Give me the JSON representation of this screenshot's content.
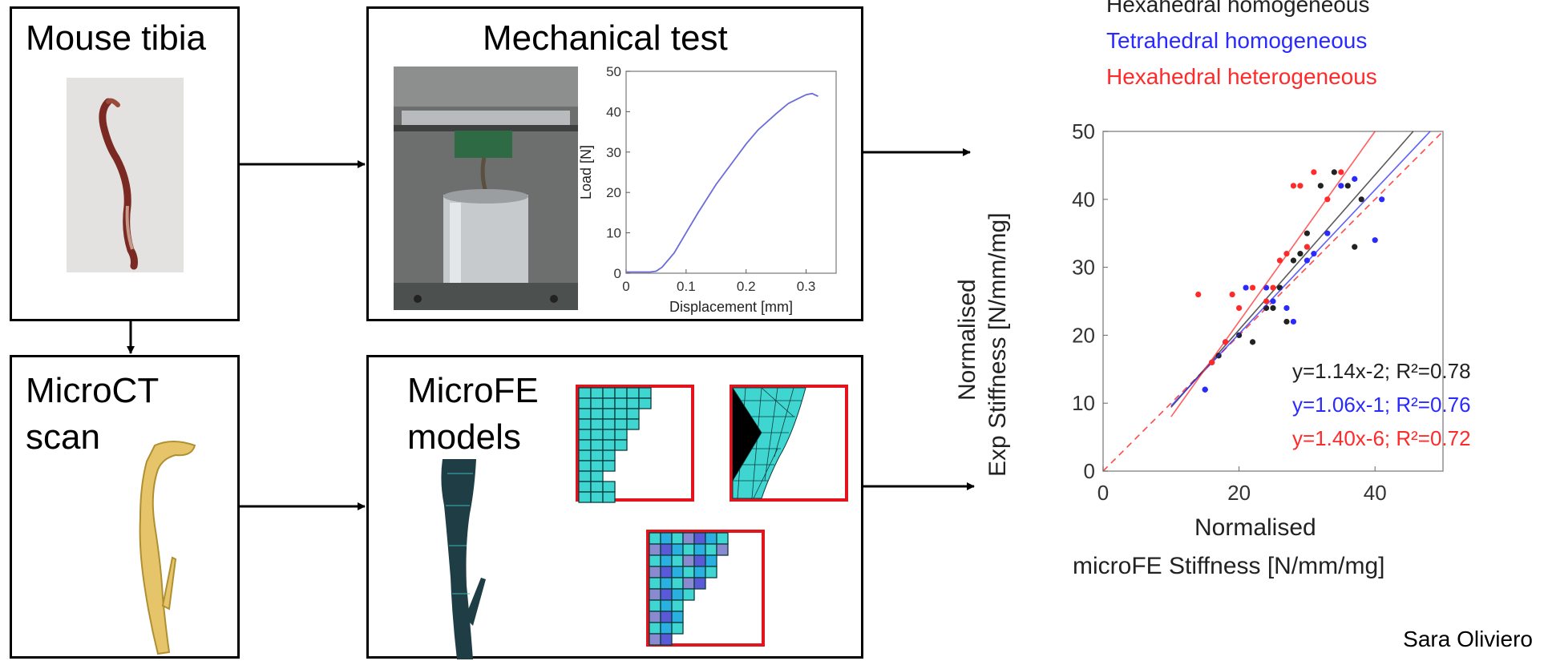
{
  "boxes": {
    "tibia": {
      "title": "Mouse tibia"
    },
    "mechanical": {
      "title": "Mechanical test"
    },
    "microct": {
      "title_line1": "MicroCT",
      "title_line2": "scan"
    },
    "microfe": {
      "title_line1": "MicroFE",
      "title_line2": "models"
    }
  },
  "inner_chart_data": {
    "type": "line",
    "xlabel": "Displacement [mm]",
    "ylabel": "Load [N]",
    "xlim": [
      0,
      0.35
    ],
    "ylim": [
      0,
      50
    ],
    "xticks": [
      "0",
      "0.1",
      "0.2",
      "0.3"
    ],
    "yticks": [
      "0",
      "10",
      "20",
      "30",
      "40",
      "50"
    ],
    "x": [
      0,
      0.04,
      0.05,
      0.06,
      0.08,
      0.1,
      0.12,
      0.15,
      0.18,
      0.2,
      0.22,
      0.25,
      0.27,
      0.29,
      0.3,
      0.31,
      0.32
    ],
    "y": [
      0.3,
      0.3,
      0.5,
      1.5,
      5,
      10,
      15,
      22,
      28,
      32,
      35.5,
      39.5,
      42,
      43.5,
      44.2,
      44.5,
      43.8
    ],
    "color": "#6b6bdc"
  },
  "chart_data": {
    "type": "scatter",
    "title": "",
    "legend": [
      "Hexahedral homogeneous",
      "Tetrahedral homogeneous",
      "Hexahedral heterogeneous"
    ],
    "colors": [
      "#222222",
      "#2a2aff",
      "#ff2a2a"
    ],
    "xlabel_line1": "Normalised",
    "xlabel_line2": "microFE Stiffness [N/mm/mg]",
    "ylabel_line1": "Normalised",
    "ylabel_line2": "Exp Stiffness [N/mm/mg]",
    "xlim": [
      0,
      50
    ],
    "ylim": [
      0,
      50
    ],
    "xticks": [
      "0",
      "20",
      "40"
    ],
    "yticks": [
      "0",
      "10",
      "20",
      "30",
      "40",
      "50"
    ],
    "series": [
      {
        "name": "Hexahedral homogeneous",
        "fit": [
          1.14,
          -2
        ],
        "x": [
          15,
          17,
          20,
          22,
          24,
          25,
          26,
          27,
          28,
          29,
          30,
          32,
          34,
          36,
          37,
          38
        ],
        "y": [
          12,
          17,
          20,
          19,
          24,
          24,
          27,
          22,
          31,
          32,
          35,
          42,
          44,
          42,
          33,
          40
        ]
      },
      {
        "name": "Tetrahedral homogeneous",
        "fit": [
          1.06,
          -1
        ],
        "x": [
          15,
          16,
          18,
          21,
          24,
          25,
          27,
          28,
          30,
          31,
          33,
          35,
          37,
          40,
          41
        ],
        "y": [
          12,
          16,
          19,
          27,
          27,
          25,
          24,
          22,
          31,
          32,
          35,
          42,
          43,
          34,
          40
        ]
      },
      {
        "name": "Hexahedral heterogeneous",
        "fit": [
          1.4,
          -6
        ],
        "x": [
          14,
          16,
          18,
          19,
          20,
          22,
          24,
          25,
          26,
          27,
          28,
          29,
          30,
          31,
          33,
          35
        ],
        "y": [
          26,
          16,
          19,
          26,
          24,
          27,
          25,
          27,
          31,
          32,
          42,
          42,
          33,
          44,
          40,
          44
        ]
      }
    ],
    "equations": [
      "y=1.14x-2; R²=0.78",
      "y=1.06x-1; R²=0.76",
      "y=1.40x-6; R²=0.72"
    ],
    "identity_line": "dashed"
  },
  "credit": "Sara Oliviero"
}
